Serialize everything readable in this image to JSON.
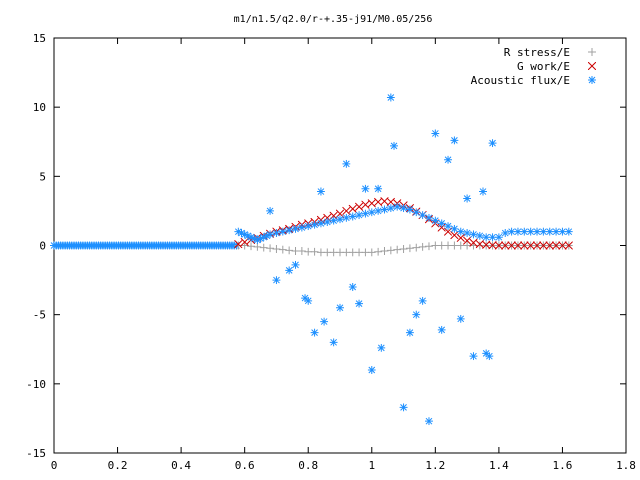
{
  "chart_data": {
    "type": "scatter",
    "title": "m1/n1.5/q2.0/r-+.35-j91/M0.05/256",
    "xlabel": "",
    "ylabel": "",
    "xlim": [
      0,
      1.8
    ],
    "ylim": [
      -15,
      15
    ],
    "xticks": [
      "0",
      "0.2",
      "0.4",
      "0.6",
      "0.8",
      "1",
      "1.2",
      "1.4",
      "1.6",
      "1.8"
    ],
    "yticks": [
      "15",
      "10",
      "5",
      "0",
      "-5",
      "-10",
      "-15"
    ],
    "legend_position": "top-right",
    "grid": false,
    "series": [
      {
        "name": "R stress/E",
        "marker": "plus",
        "color": "#a0a0a0",
        "x": [
          0.58,
          0.6,
          0.62,
          0.64,
          0.66,
          0.68,
          0.7,
          0.72,
          0.74,
          0.76,
          0.78,
          0.8,
          0.82,
          0.84,
          0.86,
          0.88,
          0.9,
          0.92,
          0.94,
          0.96,
          0.98,
          1.0,
          1.02,
          1.04,
          1.06,
          1.08,
          1.1,
          1.12,
          1.14,
          1.16,
          1.18,
          1.2,
          1.22,
          1.24,
          1.26,
          1.28,
          1.3,
          1.32,
          1.34,
          1.36,
          1.38,
          1.4,
          1.42,
          1.44,
          1.46,
          1.48,
          1.5,
          1.52,
          1.54,
          1.56,
          1.58,
          1.6,
          1.62
        ],
        "y": [
          0.0,
          0.0,
          -0.05,
          -0.1,
          -0.15,
          -0.2,
          -0.25,
          -0.3,
          -0.35,
          -0.4,
          -0.4,
          -0.45,
          -0.45,
          -0.5,
          -0.5,
          -0.5,
          -0.5,
          -0.5,
          -0.5,
          -0.5,
          -0.5,
          -0.5,
          -0.45,
          -0.4,
          -0.35,
          -0.3,
          -0.25,
          -0.2,
          -0.15,
          -0.1,
          -0.05,
          0.0,
          0.0,
          0.0,
          0.0,
          0.0,
          0.0,
          0.0,
          0.0,
          0.0,
          0.0,
          0.0,
          0.0,
          0.0,
          0.0,
          0.0,
          0.0,
          0.0,
          0.0,
          0.0,
          0.0,
          0.0,
          0.0
        ]
      },
      {
        "name": "G work/E",
        "marker": "cross",
        "color": "#cc0000",
        "x": [
          0.58,
          0.6,
          0.62,
          0.64,
          0.66,
          0.68,
          0.7,
          0.72,
          0.74,
          0.76,
          0.78,
          0.8,
          0.82,
          0.84,
          0.86,
          0.88,
          0.9,
          0.92,
          0.94,
          0.96,
          0.98,
          1.0,
          1.02,
          1.04,
          1.06,
          1.08,
          1.1,
          1.12,
          1.14,
          1.16,
          1.18,
          1.2,
          1.22,
          1.24,
          1.26,
          1.28,
          1.3,
          1.32,
          1.34,
          1.36,
          1.38,
          1.4,
          1.42,
          1.44,
          1.46,
          1.48,
          1.5,
          1.52,
          1.54,
          1.56,
          1.58,
          1.6,
          1.62
        ],
        "y": [
          0.1,
          0.25,
          0.4,
          0.55,
          0.7,
          0.85,
          1.0,
          1.1,
          1.2,
          1.35,
          1.5,
          1.6,
          1.7,
          1.85,
          2.0,
          2.15,
          2.3,
          2.5,
          2.65,
          2.8,
          2.95,
          3.05,
          3.15,
          3.2,
          3.15,
          3.05,
          2.9,
          2.7,
          2.45,
          2.2,
          1.9,
          1.6,
          1.3,
          1.0,
          0.75,
          0.55,
          0.35,
          0.2,
          0.1,
          0.05,
          0.02,
          0.0,
          0.0,
          0.0,
          0.0,
          0.0,
          0.0,
          0.0,
          0.0,
          0.0,
          0.0,
          0.0,
          0.0
        ]
      },
      {
        "name": "Acoustic flux/E",
        "marker": "star",
        "color": "#1e90ff",
        "x": [
          0.58,
          0.59,
          0.6,
          0.61,
          0.62,
          0.63,
          0.64,
          0.65,
          0.66,
          0.67,
          0.68,
          0.7,
          0.72,
          0.74,
          0.76,
          0.78,
          0.8,
          0.82,
          0.84,
          0.86,
          0.88,
          0.9,
          0.92,
          0.94,
          0.96,
          0.98,
          1.0,
          1.02,
          1.04,
          1.06,
          1.08,
          1.1,
          1.12,
          1.14,
          1.16,
          1.18,
          1.2,
          1.22,
          1.24,
          1.26,
          1.28,
          1.3,
          1.32,
          1.34,
          1.36,
          1.38,
          1.4,
          1.42,
          1.44,
          1.46,
          1.48,
          1.5,
          1.52,
          1.54,
          1.56,
          1.58,
          1.6,
          1.62,
          0.68,
          0.7,
          0.74,
          0.76,
          0.79,
          0.8,
          0.82,
          0.84,
          0.85,
          0.88,
          0.9,
          0.92,
          0.94,
          0.96,
          0.98,
          1.0,
          1.02,
          1.03,
          1.06,
          1.07,
          1.1,
          1.12,
          1.14,
          1.16,
          1.18,
          1.2,
          1.22,
          1.24,
          1.26,
          1.28,
          1.3,
          1.32,
          1.35,
          1.36,
          1.37,
          1.38
        ],
        "y": [
          1.0,
          0.9,
          0.8,
          0.7,
          0.6,
          0.5,
          0.4,
          0.5,
          0.6,
          0.7,
          0.8,
          0.9,
          1.0,
          1.1,
          1.2,
          1.3,
          1.4,
          1.5,
          1.6,
          1.7,
          1.8,
          1.9,
          2.0,
          2.1,
          2.2,
          2.3,
          2.4,
          2.5,
          2.6,
          2.7,
          2.8,
          2.7,
          2.6,
          2.4,
          2.2,
          2.0,
          1.8,
          1.6,
          1.4,
          1.2,
          1.0,
          0.9,
          0.8,
          0.7,
          0.6,
          0.6,
          0.6,
          0.9,
          1.0,
          1.0,
          1.0,
          1.0,
          1.0,
          1.0,
          1.0,
          1.0,
          1.0,
          1.0,
          2.5,
          -2.5,
          -1.8,
          -1.4,
          -3.8,
          -4.0,
          -6.3,
          3.9,
          -5.5,
          -7.0,
          -4.5,
          5.9,
          -3.0,
          -4.2,
          4.1,
          -9.0,
          4.1,
          -7.4,
          10.7,
          7.2,
          -11.7,
          -6.3,
          -5.0,
          -4.0,
          -12.7,
          8.1,
          -6.1,
          6.2,
          7.6,
          -5.3,
          3.4,
          -8.0,
          3.9,
          -7.8,
          -8.0,
          7.4
        ]
      }
    ]
  }
}
